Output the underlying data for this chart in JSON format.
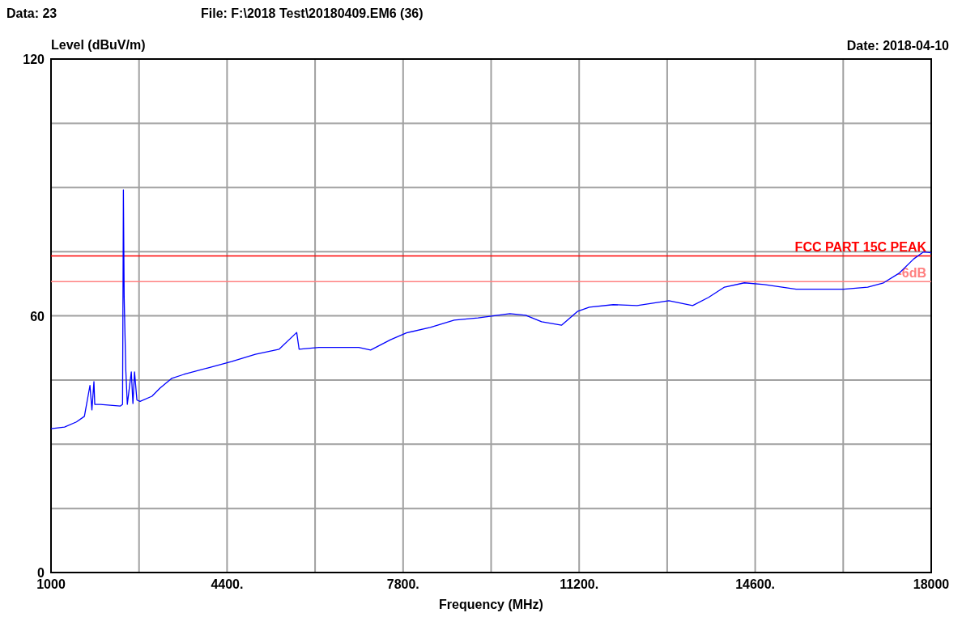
{
  "chart_data": {
    "type": "line",
    "xlabel": "Frequency (MHz)",
    "ylabel": "Level (dBuV/m)",
    "annotations": [
      "Data: 23",
      "File: F:\\2018 Test\\20180409.EM6  (36)",
      "Date: 2018-04-10"
    ],
    "xlim": [
      1000,
      18000
    ],
    "ylim": [
      0,
      120
    ],
    "xticks": [
      1000,
      {
        "value": 2700,
        "label": null
      },
      {
        "value": 4400,
        "label": "4400."
      },
      {
        "value": 6100,
        "label": null
      },
      {
        "value": 7800,
        "label": "7800."
      },
      {
        "value": 9500,
        "label": null
      },
      {
        "value": 11200,
        "label": "11200."
      },
      {
        "value": 12900,
        "label": null
      },
      {
        "value": 14600,
        "label": "14600."
      },
      {
        "value": 16300,
        "label": null
      },
      18000
    ],
    "yticks": [
      0,
      {
        "value": 15,
        "label": null
      },
      {
        "value": 30,
        "label": null
      },
      {
        "value": 45,
        "label": null
      },
      60,
      {
        "value": 75,
        "label": null
      },
      {
        "value": 90,
        "label": null
      },
      {
        "value": 105,
        "label": null
      },
      120
    ],
    "grid": true,
    "marker": "none",
    "line_style": "solid",
    "ref_lines": [
      {
        "axis": "y",
        "value": 74,
        "label": "FCC PART 15C PEAK",
        "color": "#ff0000"
      },
      {
        "axis": "y",
        "value": 68,
        "label": "-6dB",
        "color": "#ff8080"
      }
    ],
    "series": [
      {
        "color": "#0000ff",
        "x": [
          1000,
          1261,
          1491,
          1645,
          1752,
          1790,
          1829,
          1845,
          1952,
          2336,
          2382,
          2398,
          2413,
          2428,
          2444,
          2474,
          2551,
          2582,
          2613,
          2659,
          2720,
          2950,
          3104,
          3334,
          3565,
          4025,
          4486,
          4947,
          5407,
          5745,
          5791,
          6175,
          6943,
          7173,
          7557,
          7865,
          8325,
          8786,
          9247,
          9861,
          10168,
          10475,
          10859,
          11166,
          11397,
          11857,
          12318,
          12932,
          13392,
          13700,
          14007,
          14391,
          14775,
          15390,
          15850,
          16311,
          16772,
          17079,
          17386,
          17663,
          17847,
          18000
        ],
        "values": [
          33.6,
          34,
          35.2,
          36.5,
          43.7,
          38,
          44.6,
          39.3,
          39.3,
          38.9,
          39.3,
          89.4,
          64.3,
          56,
          47.4,
          39.3,
          46.9,
          39.5,
          46.9,
          40.3,
          40,
          41.2,
          43.1,
          45.4,
          46.3,
          47.8,
          49.3,
          51,
          52.2,
          56.1,
          52.2,
          52.6,
          52.6,
          52,
          54.4,
          56,
          57.3,
          59,
          59.5,
          60.5,
          60.1,
          58.6,
          57.8,
          61,
          62,
          62.6,
          62.4,
          63.5,
          62.4,
          64.3,
          66.7,
          67.7,
          67.3,
          66.2,
          66.2,
          66.2,
          66.7,
          67.7,
          70,
          73.3,
          74.9,
          74.7
        ]
      }
    ]
  }
}
